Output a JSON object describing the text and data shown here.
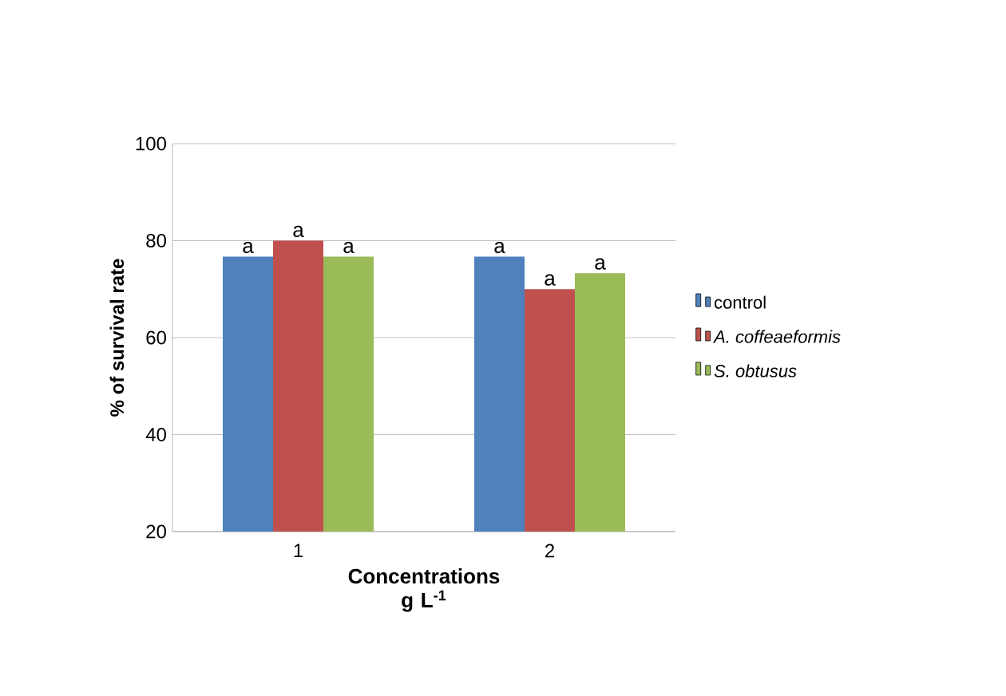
{
  "chart_data": {
    "type": "bar",
    "xlabel": "Concentrations g L$^{-1}$",
    "ylabel": "% of survival rate",
    "categories": [
      "1",
      "2"
    ],
    "series": [
      {
        "name": "control",
        "color": "#4f81bd",
        "values": [
          76.7,
          76.7
        ]
      },
      {
        "name": "*A. coffeaeformis*",
        "color": "#c0504d",
        "values": [
          80,
          70
        ]
      },
      {
        "name": "*S. obtusus*",
        "color": "#9bbb59",
        "values": [
          76.7,
          73.3
        ]
      }
    ],
    "ylim": [
      20,
      100
    ],
    "yticks": [
      20,
      40,
      60,
      80,
      100
    ],
    "grid": "y",
    "legend": "right",
    "annotations": [
      "a",
      "a",
      "a",
      "a",
      "a",
      "a"
    ]
  }
}
